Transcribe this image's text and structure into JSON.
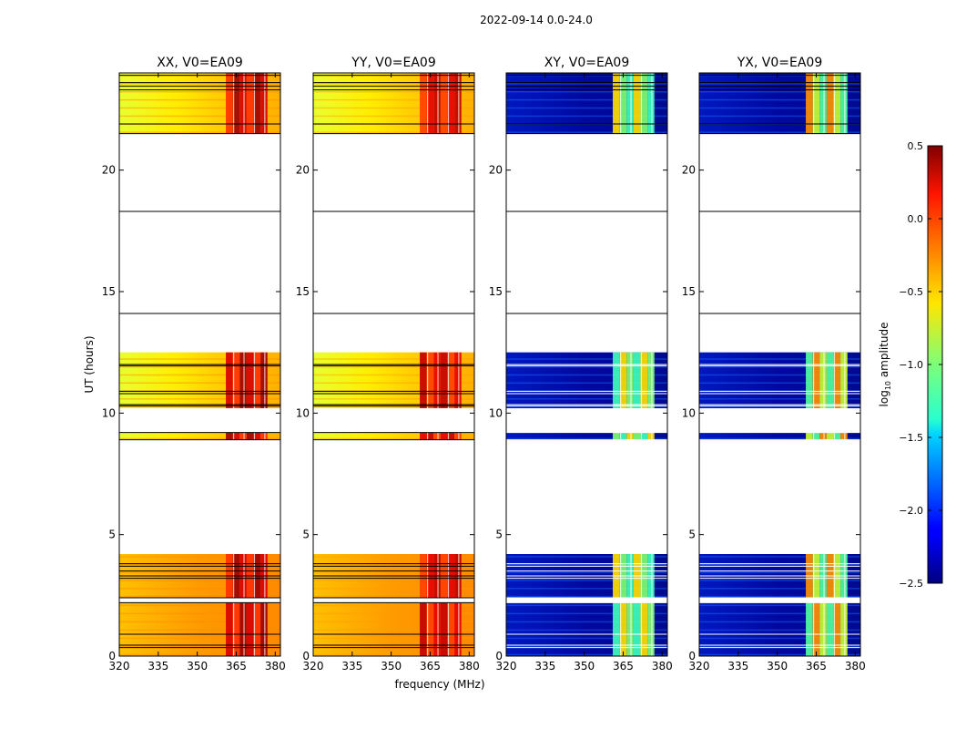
{
  "figure": {
    "suptitle": "2022-09-14 0.0-24.0",
    "ylabel": "UT (hours)",
    "xlabel": "frequency (MHz)"
  },
  "chart_data": {
    "type": "heatmap",
    "title": "2022-09-14 0.0-24.0",
    "xlabel": "frequency (MHz)",
    "ylabel": "UT (hours)",
    "xlim": [
      320,
      382
    ],
    "ylim": [
      0,
      24
    ],
    "xticks": [
      320,
      335,
      350,
      365,
      380
    ],
    "yticks": [
      0,
      5,
      10,
      15,
      20
    ],
    "panels": [
      {
        "title": "XX, V0=EA09",
        "pol": "XX"
      },
      {
        "title": "YY, V0=EA09",
        "pol": "YY"
      },
      {
        "title": "XY, V0=EA09",
        "pol": "XY"
      },
      {
        "title": "YX, V0=EA09",
        "pol": "YX"
      }
    ],
    "data_blocks_hours": [
      {
        "start": 0.0,
        "end": 2.2
      },
      {
        "start": 2.4,
        "end": 4.2
      },
      {
        "start": 8.9,
        "end": 9.2
      },
      {
        "start": 10.2,
        "end": 12.5
      },
      {
        "start": 21.5,
        "end": 24.0
      }
    ],
    "boundary_lines_hours": [
      0.35,
      0.45,
      0.9,
      2.2,
      2.4,
      3.2,
      3.3,
      3.5,
      3.7,
      3.8,
      8.9,
      9.2,
      10.3,
      10.35,
      10.8,
      10.9,
      11.95,
      12.0,
      14.1,
      18.3,
      21.5,
      21.9,
      23.3,
      23.45,
      23.6,
      23.9
    ],
    "rfi_band_mhz": [
      361,
      377
    ],
    "rfi_gap_lines_mhz": [
      364,
      368,
      372,
      376
    ],
    "colorbar": {
      "label": "log10 amplitude",
      "label_base": "log",
      "label_sub": "10",
      "label_rest": " amplitude",
      "min": -2.5,
      "max": 0.5,
      "ticks": [
        "−2.5",
        "−2.0",
        "−1.5",
        "−1.0",
        "−0.5",
        "0.0",
        "0.5"
      ],
      "tick_values": [
        -2.5,
        -2.0,
        -1.5,
        -1.0,
        -0.5,
        0.0,
        0.5
      ],
      "colormap": "jet"
    }
  }
}
